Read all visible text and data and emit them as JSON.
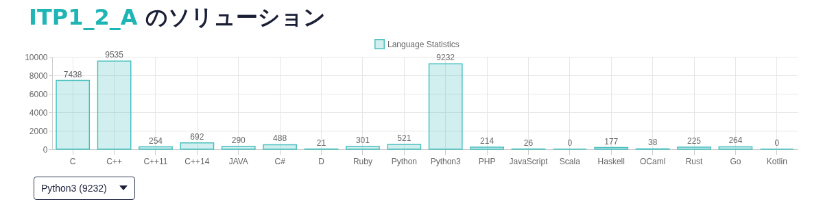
{
  "chart_data": {
    "type": "bar",
    "title": "ITP1_2_A のソリューション",
    "categories": [
      "C",
      "C++",
      "C++11",
      "C++14",
      "JAVA",
      "C#",
      "D",
      "Ruby",
      "Python",
      "Python3",
      "PHP",
      "JavaScript",
      "Scala",
      "Haskell",
      "OCaml",
      "Rust",
      "Go",
      "Kotlin"
    ],
    "series": [
      {
        "name": "Language Statistics",
        "color": "#4bc0c0",
        "values": [
          7438,
          9535,
          254,
          692,
          290,
          488,
          21,
          301,
          521,
          9232,
          214,
          26,
          0,
          177,
          38,
          225,
          264,
          0
        ]
      }
    ],
    "ylim": [
      0,
      10000
    ],
    "yticks": [
      0,
      2000,
      4000,
      6000,
      8000,
      10000
    ],
    "grid": true,
    "legend": "top",
    "data_labels": true,
    "annotations": [
      "Python3 (9232)"
    ]
  }
}
